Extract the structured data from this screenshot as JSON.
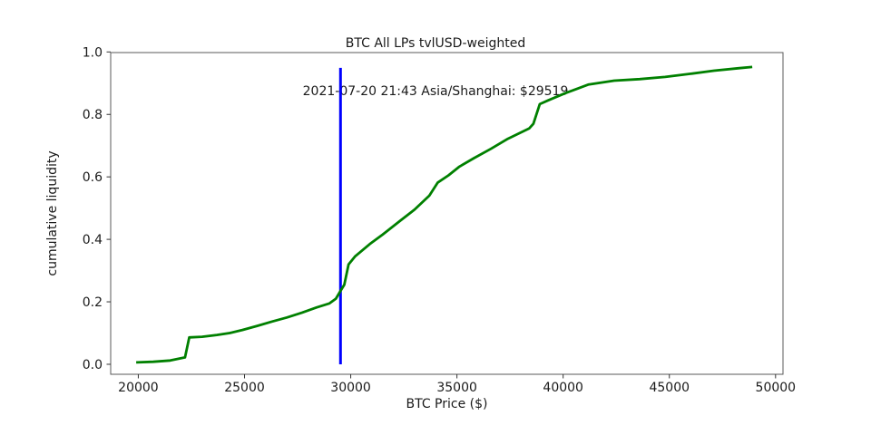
{
  "title": {
    "line1": "BTC All LPs tvlUSD-weighted",
    "line2": "2021-07-20 21:43 Asia/Shanghai: $29519"
  },
  "chart_data": {
    "type": "line",
    "title": "BTC All LPs tvlUSD-weighted",
    "subtitle": "2021-07-20 21:43 Asia/Shanghai: $29519",
    "xlabel": "BTC Price ($)",
    "ylabel": "cumulative liquidity",
    "xlim": [
      18700,
      50350
    ],
    "ylim": [
      -0.032,
      0.998
    ],
    "grid": false,
    "legend": "none",
    "x_ticks": [
      20000,
      25000,
      30000,
      35000,
      40000,
      45000,
      50000
    ],
    "x_tick_labels": [
      "20000",
      "25000",
      "30000",
      "35000",
      "40000",
      "45000",
      "50000"
    ],
    "y_ticks": [
      0.0,
      0.2,
      0.4,
      0.6,
      0.8,
      1.0
    ],
    "y_tick_labels": [
      "0.0",
      "0.2",
      "0.4",
      "0.6",
      "0.8",
      "1.0"
    ],
    "series": [
      {
        "name": "cumulative liquidity (tvlUSD-weighted)",
        "color": "#008000",
        "line_width": 2.8,
        "x": [
          19900,
          20700,
          21500,
          22200,
          22400,
          23000,
          23700,
          24300,
          24900,
          25600,
          26300,
          27000,
          27700,
          28400,
          29000,
          29300,
          29519,
          29700,
          29900,
          30200,
          30900,
          31500,
          32300,
          33000,
          33700,
          34100,
          34600,
          35100,
          35800,
          36600,
          37400,
          38400,
          38600,
          38900,
          39300,
          40100,
          41200,
          42400,
          43600,
          44800,
          46000,
          47100,
          48300,
          48900
        ],
        "y": [
          0.006,
          0.008,
          0.012,
          0.022,
          0.086,
          0.088,
          0.094,
          0.1,
          0.11,
          0.123,
          0.137,
          0.15,
          0.165,
          0.182,
          0.195,
          0.21,
          0.235,
          0.255,
          0.32,
          0.345,
          0.385,
          0.415,
          0.458,
          0.495,
          0.54,
          0.582,
          0.605,
          0.632,
          0.66,
          0.69,
          0.722,
          0.755,
          0.77,
          0.833,
          0.845,
          0.868,
          0.896,
          0.908,
          0.913,
          0.92,
          0.93,
          0.94,
          0.948,
          0.952
        ]
      }
    ],
    "vline": {
      "x": 29519,
      "y0": 0.0,
      "y1": 0.949,
      "color": "#0000ff",
      "line_width": 3
    }
  },
  "colors": {
    "curve_green": "#008000",
    "vline_blue": "#0000ff",
    "spine": "#595959",
    "tick": "#333333",
    "text": "#1a1a1a",
    "background": "#ffffff"
  }
}
